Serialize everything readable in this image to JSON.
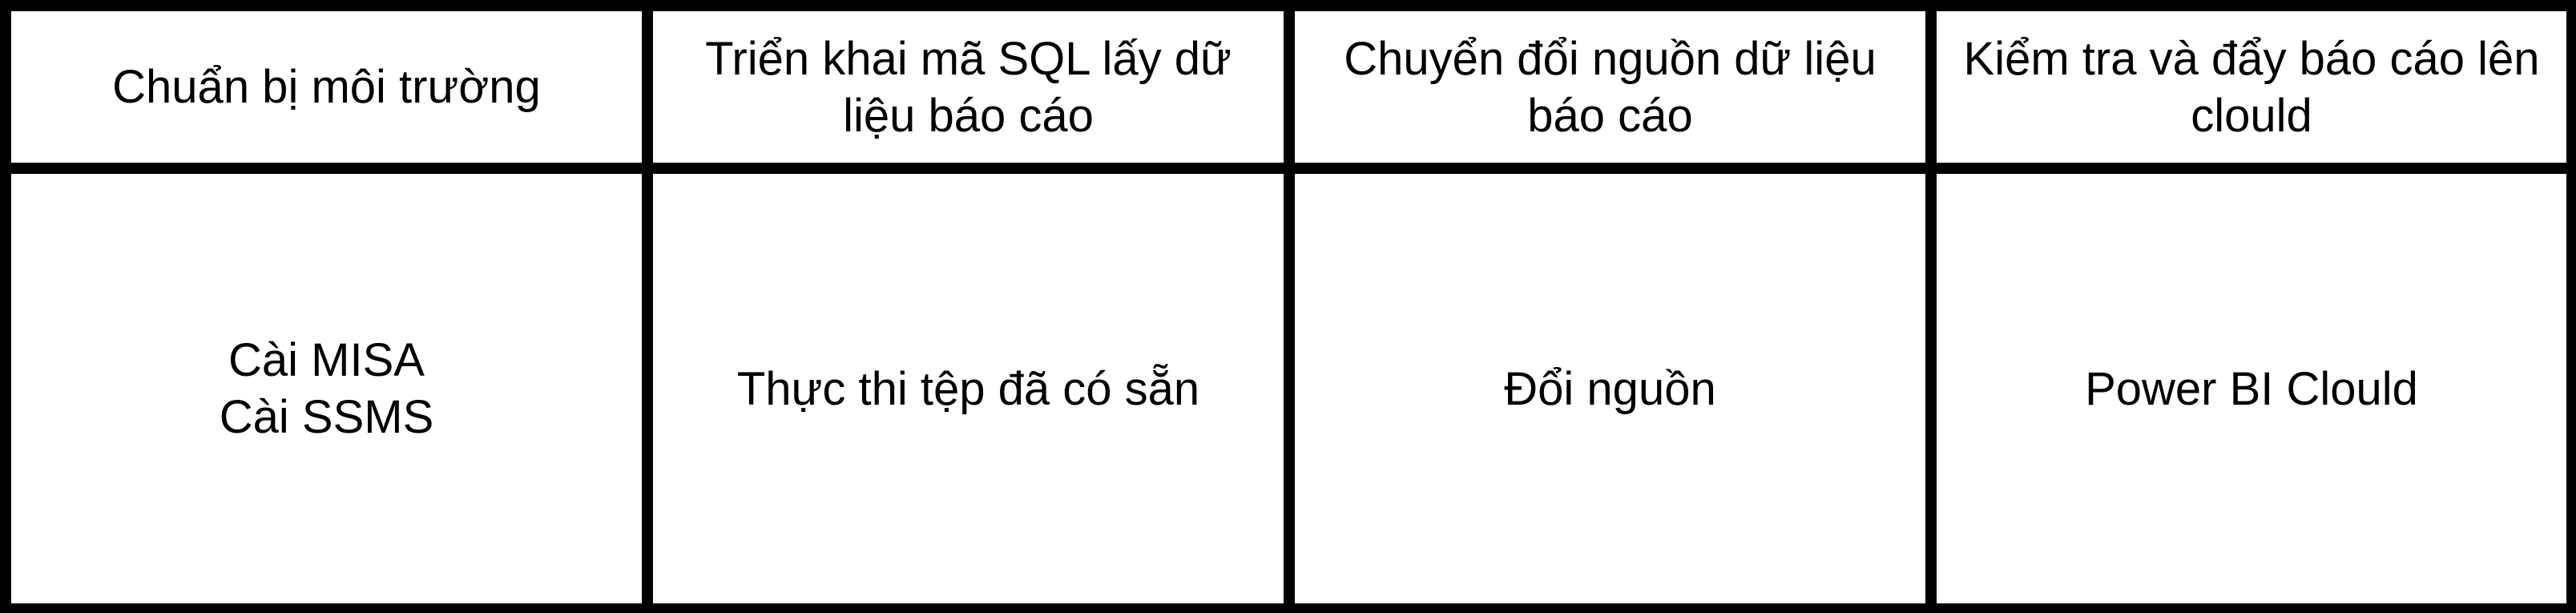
{
  "columns": [
    {
      "header_lines": [
        "Chuẩn bị môi trường"
      ],
      "content_lines": [
        "Cài MISA",
        "Cài SSMS"
      ]
    },
    {
      "header_lines": [
        "Triển khai mã SQL lấy dữ",
        "liệu báo cáo"
      ],
      "content_lines": [
        "Thực thi tệp đã có sẵn"
      ]
    },
    {
      "header_lines": [
        "Chuyển đổi nguồn dữ liệu",
        "báo cáo"
      ],
      "content_lines": [
        "Đổi nguồn"
      ]
    },
    {
      "header_lines": [
        "Kiểm tra và đẩy báo cáo lên",
        "clould"
      ],
      "content_lines": [
        "Power BI Clould"
      ]
    }
  ],
  "colors": {
    "border": "#000000",
    "cell_background": "#ffffff",
    "text": "#000000"
  }
}
